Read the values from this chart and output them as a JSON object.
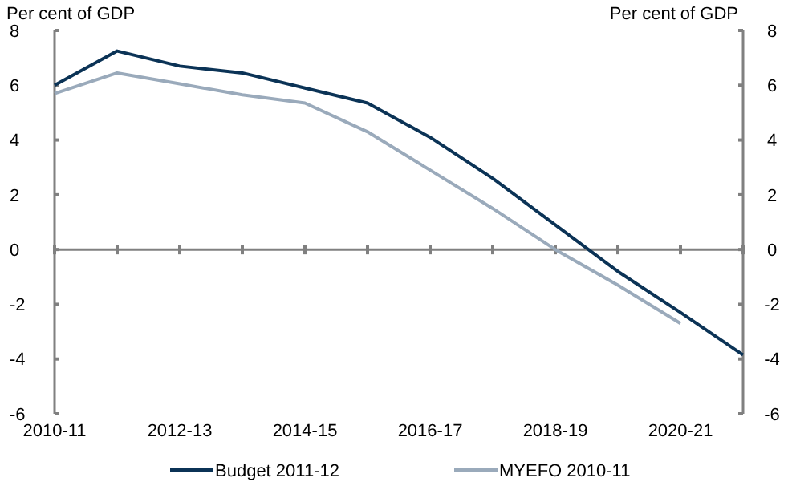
{
  "chart_data": {
    "type": "line",
    "ylabel": "Per cent of GDP",
    "y2label": "Per cent of GDP",
    "categories": [
      "2010-11",
      null,
      "2012-13",
      null,
      "2014-15",
      null,
      "2016-17",
      null,
      "2018-19",
      null,
      "2020-21",
      null
    ],
    "series": [
      {
        "name": "Budget 2011-12",
        "color": "#0b3356",
        "values": [
          6.0,
          7.25,
          6.7,
          6.45,
          5.9,
          5.35,
          4.1,
          2.6,
          0.9,
          -0.8,
          -2.3,
          -3.85
        ]
      },
      {
        "name": "MYEFO 2010-11",
        "color": "#9aaabb",
        "values": [
          5.7,
          6.45,
          6.05,
          5.65,
          5.35,
          4.3,
          2.9,
          1.5,
          0.0,
          -1.3,
          -2.7,
          null
        ]
      }
    ],
    "ylim": [
      -6,
      8
    ],
    "yticks": [
      -6,
      -4,
      -2,
      0,
      2,
      4,
      6,
      8
    ],
    "y2lim": [
      -6,
      8
    ],
    "y2ticks": [
      -6,
      -4,
      -2,
      0,
      2,
      4,
      6,
      8
    ],
    "legend": "bottom",
    "marker": "none",
    "line_style": "solid"
  }
}
